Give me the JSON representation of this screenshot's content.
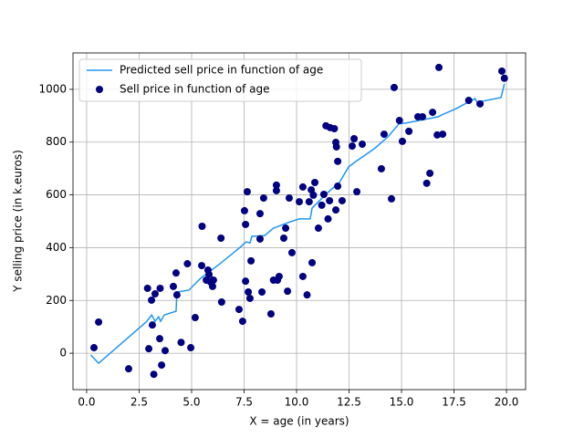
{
  "chart_data": {
    "type": "line",
    "xlabel": "X = age (in years)",
    "ylabel": "Y selling price (in k.euros)",
    "xlim": [
      -0.65,
      20.91
    ],
    "ylim": [
      -138,
      1138
    ],
    "xticks": [
      {
        "value": 0,
        "label": "0.0"
      },
      {
        "value": 2.5,
        "label": "2.5"
      },
      {
        "value": 5,
        "label": "5.0"
      },
      {
        "value": 7.5,
        "label": "7.5"
      },
      {
        "value": 10,
        "label": "10.0"
      },
      {
        "value": 12.5,
        "label": "12.5"
      },
      {
        "value": 15,
        "label": "15.0"
      },
      {
        "value": 17.5,
        "label": "17.5"
      },
      {
        "value": 20,
        "label": "20.0"
      }
    ],
    "yticks": [
      0,
      200,
      400,
      600,
      800,
      1000
    ],
    "grid": true,
    "legend": "upper-left",
    "series": [
      {
        "name": "Predicted sell price in function of age",
        "type": "line",
        "color": "#2196f3",
        "x": [
          0.2,
          0.57,
          2.83,
          3.1,
          3.26,
          3.43,
          3.52,
          3.7,
          4.26,
          4.3,
          4.87,
          5.43,
          6.3,
          7.26,
          7.6,
          7.78,
          7.87,
          8.48,
          8.9,
          9.7,
          10.13,
          10.65,
          10.74,
          11.43,
          12.04,
          12.48,
          12.83,
          13.7,
          14.35,
          14.87,
          15.2,
          16.74,
          17.0,
          17.6,
          18.26,
          18.5,
          18.6,
          19.74,
          19.9
        ],
        "values": [
          -7,
          -38,
          118,
          145,
          121,
          138,
          121,
          145,
          159,
          232,
          239,
          284,
          336,
          398,
          422,
          418,
          443,
          446,
          474,
          498,
          509,
          509,
          550,
          605,
          647,
          706,
          727,
          775,
          820,
          869,
          872,
          896,
          906,
          927,
          955,
          965,
          951,
          969,
          1021
        ]
      },
      {
        "name": "Sell price in function of age",
        "type": "scatter",
        "color": "#000080",
        "x": [
          0.35,
          0.57,
          2.0,
          2.9,
          2.96,
          3.13,
          3.09,
          3.26,
          3.2,
          3.5,
          3.48,
          3.57,
          3.74,
          4.13,
          4.26,
          4.3,
          4.5,
          4.8,
          4.96,
          5.17,
          5.5,
          5.48,
          5.7,
          5.78,
          5.83,
          5.9,
          6.04,
          6.0,
          6.4,
          6.43,
          7.26,
          7.43,
          7.57,
          7.52,
          7.57,
          7.65,
          7.7,
          7.78,
          7.83,
          8.26,
          8.26,
          8.35,
          8.43,
          8.78,
          8.9,
          9.04,
          9.04,
          9.09,
          9.17,
          9.39,
          9.48,
          9.57,
          9.65,
          9.78,
          10.13,
          10.3,
          10.3,
          10.5,
          10.6,
          10.7,
          10.74,
          10.8,
          10.87,
          11.04,
          11.2,
          11.3,
          11.4,
          11.5,
          11.57,
          11.6,
          11.8,
          11.87,
          11.87,
          11.9,
          11.96,
          11.96,
          12.17,
          12.65,
          12.74,
          12.87,
          13.13,
          14.04,
          14.17,
          14.52,
          14.65,
          14.9,
          15.04,
          15.35,
          15.78,
          16.0,
          16.2,
          16.35,
          16.48,
          16.7,
          16.78,
          16.96,
          18.2,
          18.74,
          19.78,
          19.9
        ],
        "values": [
          21,
          118,
          -59,
          246,
          17,
          107,
          201,
          225,
          -80,
          246,
          55,
          -45,
          10,
          253,
          304,
          221,
          41,
          339,
          21,
          135,
          481,
          332,
          277,
          315,
          298,
          270,
          277,
          253,
          436,
          194,
          166,
          121,
          488,
          540,
          273,
          612,
          232,
          208,
          350,
          433,
          529,
          232,
          588,
          149,
          277,
          616,
          637,
          277,
          291,
          436,
          474,
          235,
          588,
          381,
          574,
          291,
          630,
          221,
          574,
          619,
          343,
          599,
          647,
          474,
          561,
          602,
          862,
          509,
          578,
          855,
          851,
          543,
          799,
          782,
          727,
          633,
          578,
          785,
          813,
          612,
          792,
          699,
          830,
          585,
          1007,
          882,
          803,
          841,
          896,
          896,
          644,
          682,
          913,
          827,
          1083,
          830,
          958,
          945,
          1069,
          1042
        ]
      }
    ]
  }
}
